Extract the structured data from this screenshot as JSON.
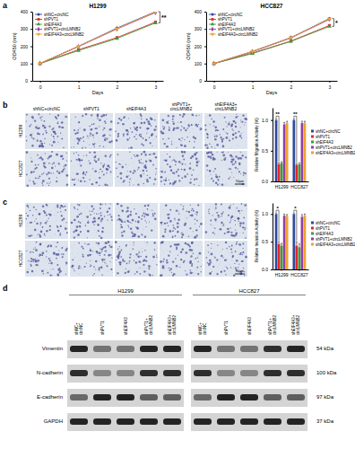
{
  "chart_data": [
    {
      "type": "line",
      "title": "H1299",
      "xlabel": "Days",
      "ylabel": "OD450 (nm)",
      "x": [
        0,
        1,
        2,
        3
      ],
      "xlim": [
        -0.2,
        3.2
      ],
      "xticks": [
        0,
        1,
        2,
        3
      ],
      "ylim": [
        0,
        400
      ],
      "yticks": [
        0,
        100,
        200,
        300,
        400
      ],
      "legend": "top-left",
      "annotations": [
        "**"
      ],
      "series": [
        {
          "name": "shNC+circNC",
          "color": "#2e4a9e",
          "marker": "circle",
          "values": [
            100,
            200,
            305,
            400
          ]
        },
        {
          "name": "shPVT1",
          "color": "#e3262b",
          "marker": "square",
          "values": [
            100,
            180,
            250,
            340
          ]
        },
        {
          "name": "shEIF4A3",
          "color": "#3a9e3a",
          "marker": "triangle",
          "values": [
            100,
            175,
            245,
            335
          ]
        },
        {
          "name": "shPVT1+circLMNB2",
          "color": "#8f3fa8",
          "marker": "diamond",
          "values": [
            100,
            198,
            300,
            395
          ]
        },
        {
          "name": "shEIF4A3+circLMNB2",
          "color": "#f0a330",
          "marker": "triangle-down",
          "values": [
            100,
            200,
            302,
            398
          ]
        }
      ]
    },
    {
      "type": "line",
      "title": "HCC827",
      "xlabel": "Days",
      "ylabel": "OD450 (nm)",
      "x": [
        0,
        1,
        2,
        3
      ],
      "xlim": [
        -0.2,
        3.2
      ],
      "xticks": [
        0,
        1,
        2,
        3
      ],
      "ylim": [
        0,
        400
      ],
      "yticks": [
        0,
        100,
        200,
        300,
        400
      ],
      "legend": "top-left",
      "annotations": [
        "*"
      ],
      "series": [
        {
          "name": "shNC+circNC",
          "color": "#2e4a9e",
          "marker": "circle",
          "values": [
            100,
            170,
            250,
            360
          ]
        },
        {
          "name": "shPVT1",
          "color": "#e3262b",
          "marker": "square",
          "values": [
            100,
            160,
            230,
            320
          ]
        },
        {
          "name": "shEIF4A3",
          "color": "#3a9e3a",
          "marker": "triangle",
          "values": [
            100,
            158,
            228,
            315
          ]
        },
        {
          "name": "shPVT1+circLMNB2",
          "color": "#8f3fa8",
          "marker": "diamond",
          "values": [
            100,
            168,
            248,
            355
          ]
        },
        {
          "name": "shEIF4A3+circLMNB2",
          "color": "#f0a330",
          "marker": "triangle-down",
          "values": [
            100,
            170,
            250,
            358
          ]
        }
      ]
    },
    {
      "type": "bar",
      "ylabel": "Relative Migration Activity (%)",
      "categories": [
        "H1299",
        "HCC827"
      ],
      "ylim": [
        0,
        1.2
      ],
      "yticks": [
        {
          "value": 0,
          "label": "0.0"
        },
        {
          "value": 0.5,
          "label": "0.5"
        },
        {
          "value": 1,
          "label": "1.0"
        }
      ],
      "legend": "right",
      "annotations": [
        "**",
        "**"
      ],
      "series": [
        {
          "name": "shNC+circNC",
          "color": "#2e4a9e",
          "values": [
            1.0,
            1.0
          ],
          "errors": [
            0.02,
            0.02
          ]
        },
        {
          "name": "shPVT1",
          "color": "#e3262b",
          "values": [
            0.28,
            0.27
          ],
          "errors": [
            0.02,
            0.02
          ]
        },
        {
          "name": "shEIF4A3",
          "color": "#3a9e3a",
          "values": [
            0.3,
            0.28
          ],
          "errors": [
            0.02,
            0.02
          ]
        },
        {
          "name": "shPVT1+circLMNB2",
          "color": "#8f3fa8",
          "values": [
            0.93,
            0.95
          ],
          "errors": [
            0.03,
            0.03
          ]
        },
        {
          "name": "shEIF4A3+circLMNB2",
          "color": "#f0a330",
          "values": [
            0.95,
            0.95
          ],
          "errors": [
            0.03,
            0.03
          ]
        }
      ]
    },
    {
      "type": "bar",
      "ylabel": "Relative Invasion Activity (%)",
      "categories": [
        "H1299",
        "HCC827"
      ],
      "ylim": [
        0,
        1.2
      ],
      "yticks": [
        {
          "value": 0,
          "label": "0.0"
        },
        {
          "value": 0.5,
          "label": "0.5"
        },
        {
          "value": 1,
          "label": "1.0"
        }
      ],
      "legend": "right",
      "annotations": [
        "*",
        "*"
      ],
      "series": [
        {
          "name": "shNC+circNC",
          "color": "#2e4a9e",
          "values": [
            1.0,
            1.0
          ],
          "errors": [
            0.02,
            0.02
          ]
        },
        {
          "name": "shPVT1",
          "color": "#e3262b",
          "values": [
            0.46,
            0.43
          ],
          "errors": [
            0.04,
            0.06
          ]
        },
        {
          "name": "shEIF4A3",
          "color": "#3a9e3a",
          "values": [
            0.43,
            0.4
          ],
          "errors": [
            0.04,
            0.06
          ]
        },
        {
          "name": "shPVT1+circLMNB2",
          "color": "#8f3fa8",
          "values": [
            0.97,
            0.95
          ],
          "errors": [
            0.03,
            0.04
          ]
        },
        {
          "name": "shEIF4A3+circLMNB2",
          "color": "#f0a330",
          "values": [
            0.96,
            0.97
          ],
          "errors": [
            0.03,
            0.03
          ]
        }
      ]
    }
  ],
  "panel_labels": [
    "a",
    "b",
    "c",
    "d"
  ],
  "micrographs": {
    "columns": [
      [
        "shNC+circNC"
      ],
      [
        "shPVT1"
      ],
      [
        "shEIF4A3"
      ],
      [
        "shPVT1+",
        "circLMNB2"
      ],
      [
        "shEIF4A3+",
        "circLMNB2"
      ]
    ],
    "rows": [
      "H1299",
      "HCC827"
    ],
    "scale_bar": "50μm"
  },
  "blot": {
    "groups": [
      "H1299",
      "HCC827"
    ],
    "lanes": [
      [
        "shNC+",
        "circNC"
      ],
      [
        "shPVT1"
      ],
      [
        "shEIF4A3"
      ],
      [
        "shPVT1+",
        "circLMNB2"
      ],
      [
        "shEIF4A3+",
        "circLMNB2"
      ]
    ],
    "proteins": [
      {
        "name": "Vimentin",
        "size": "54 kDa",
        "intensity": [
          0.9,
          0.5,
          0.5,
          0.9,
          0.9,
          0.9,
          0.5,
          0.5,
          0.85,
          0.9
        ]
      },
      {
        "name": "N-cadherin",
        "size": "100 kDa",
        "intensity": [
          0.85,
          0.4,
          0.4,
          0.85,
          0.85,
          0.85,
          0.4,
          0.4,
          0.85,
          0.85
        ]
      },
      {
        "name": "E-cadherin",
        "size": "97 kDa",
        "intensity": [
          0.55,
          0.9,
          0.9,
          0.6,
          0.6,
          0.55,
          0.9,
          0.9,
          0.6,
          0.6
        ]
      },
      {
        "name": "GAPDH",
        "size": "37 kDa",
        "intensity": [
          0.9,
          0.9,
          0.9,
          0.9,
          0.9,
          0.9,
          0.9,
          0.9,
          0.9,
          0.9
        ]
      }
    ]
  }
}
